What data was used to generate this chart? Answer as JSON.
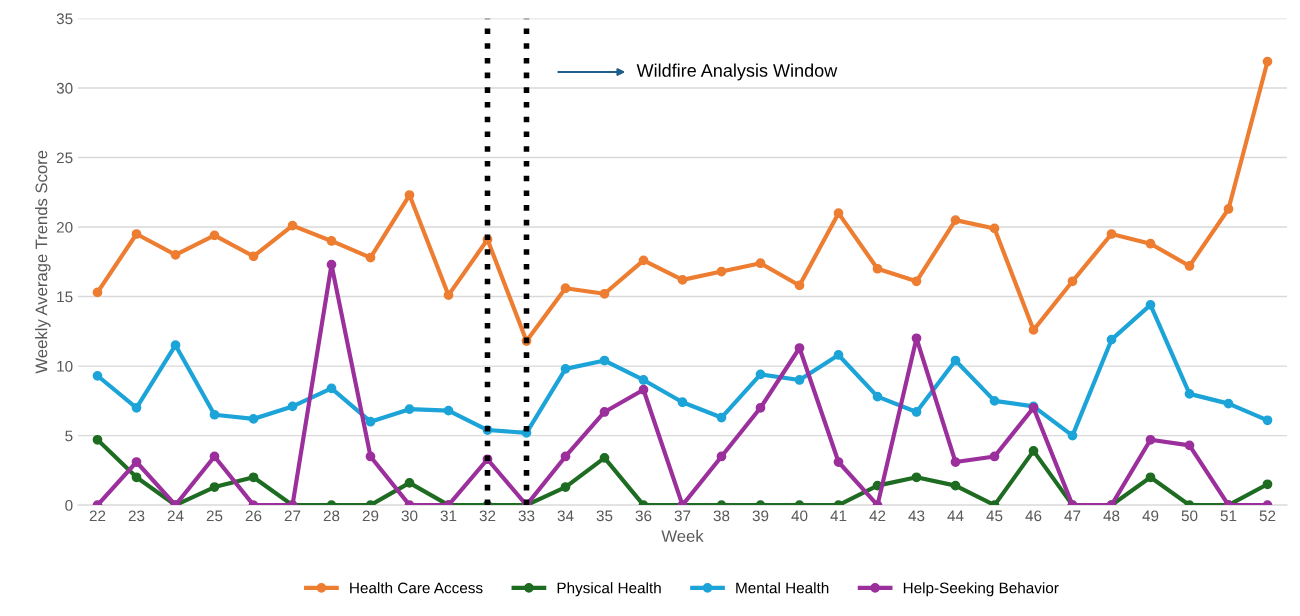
{
  "chart_data": {
    "type": "line",
    "xlabel": "Week",
    "ylabel": "Weekly Average Trends Score",
    "categories": [
      "22",
      "23",
      "24",
      "25",
      "26",
      "27",
      "28",
      "29",
      "30",
      "31",
      "32",
      "33",
      "34",
      "35",
      "36",
      "37",
      "38",
      "39",
      "40",
      "41",
      "42",
      "43",
      "44",
      "45",
      "46",
      "47",
      "48",
      "49",
      "50",
      "51",
      "52"
    ],
    "series": [
      {
        "name": "Health Care Access",
        "color": "#ed7d31",
        "values": [
          15.3,
          19.5,
          18.0,
          19.4,
          17.9,
          20.1,
          19.0,
          17.8,
          22.3,
          15.1,
          19.1,
          11.8,
          15.6,
          15.2,
          17.6,
          16.2,
          16.8,
          17.4,
          15.8,
          21.0,
          17.0,
          16.1,
          20.5,
          19.9,
          12.6,
          16.1,
          19.5,
          18.8,
          17.2,
          21.3,
          31.9
        ]
      },
      {
        "name": "Physical Health",
        "color": "#1e6b22",
        "values": [
          4.7,
          2.0,
          0,
          1.3,
          2.0,
          0,
          0,
          0,
          1.6,
          0,
          0,
          0,
          1.3,
          3.4,
          0,
          0,
          0,
          0,
          0,
          0,
          1.4,
          2.0,
          1.4,
          0,
          3.9,
          0,
          0,
          2.0,
          0,
          0,
          1.5
        ]
      },
      {
        "name": "Mental Health",
        "color": "#1ca4d8",
        "values": [
          9.3,
          7.0,
          11.5,
          6.5,
          6.2,
          7.1,
          8.4,
          6.0,
          6.9,
          6.8,
          5.4,
          5.2,
          9.8,
          10.4,
          9.0,
          7.4,
          6.3,
          9.4,
          9.0,
          10.8,
          7.8,
          6.7,
          10.4,
          7.5,
          7.1,
          5.0,
          11.9,
          14.4,
          8.0,
          7.3,
          6.1
        ]
      },
      {
        "name": "Help-Seeking Behavior",
        "color": "#9b2f9b",
        "values": [
          0,
          3.1,
          0,
          3.5,
          0,
          0,
          17.3,
          3.5,
          0,
          0,
          3.3,
          0,
          3.5,
          6.7,
          8.3,
          0,
          3.5,
          7.0,
          11.3,
          3.1,
          0,
          12.0,
          3.1,
          3.5,
          7.0,
          0,
          0,
          4.7,
          4.3,
          0,
          0
        ]
      }
    ],
    "ylim": [
      0,
      35
    ],
    "yticks": [
      0,
      5,
      10,
      15,
      20,
      25,
      30,
      35
    ],
    "grid": "y",
    "legend": "bottom",
    "marker": "circle",
    "line_style": "solid",
    "ref_lines": [
      {
        "axis": "x",
        "value": "32",
        "color": "#000000",
        "line_style": "dotted"
      },
      {
        "axis": "x",
        "value": "33",
        "color": "#000000",
        "line_style": "dotted"
      }
    ],
    "annotations": [
      "Wildfire Analysis Window"
    ]
  }
}
